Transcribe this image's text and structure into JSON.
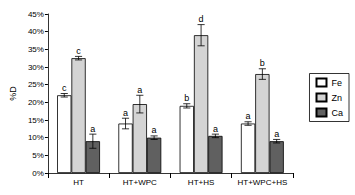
{
  "chart_data": {
    "type": "bar",
    "ylabel": "%D",
    "categories": [
      "HT",
      "HT+WPC",
      "HT+HS",
      "HT+WPC+HS"
    ],
    "series": [
      {
        "name": "Fe",
        "color": "#ffffff",
        "values": [
          22,
          14,
          19,
          14
        ],
        "errors": [
          0.5,
          1.5,
          0.6,
          0.5
        ],
        "letters": [
          "c",
          "a",
          "b",
          "a"
        ]
      },
      {
        "name": "Zn",
        "color": "#d4d4d4",
        "values": [
          32.5,
          19.5,
          39,
          28
        ],
        "errors": [
          0.5,
          2.5,
          3,
          1.5
        ],
        "letters": [
          "c",
          "a",
          "d",
          "b"
        ]
      },
      {
        "name": "Ca",
        "color": "#606060",
        "values": [
          9,
          10,
          10.5,
          9
        ],
        "errors": [
          2,
          0.5,
          0.5,
          0.5
        ],
        "letters": [
          "a",
          "a",
          "a",
          "a"
        ]
      }
    ],
    "ylim": [
      0,
      45
    ],
    "yticks": [
      {
        "value": 0,
        "label": "0%"
      },
      {
        "value": 5,
        "label": "5%"
      },
      {
        "value": 10,
        "label": "10%"
      },
      {
        "value": 15,
        "label": "15%"
      },
      {
        "value": 20,
        "label": "20%"
      },
      {
        "value": 25,
        "label": "25%"
      },
      {
        "value": 30,
        "label": "30%"
      },
      {
        "value": 35,
        "label": "35%"
      },
      {
        "value": 40,
        "label": "40%"
      },
      {
        "value": 45,
        "label": "45%"
      }
    ],
    "grid": false,
    "legend": "right"
  }
}
